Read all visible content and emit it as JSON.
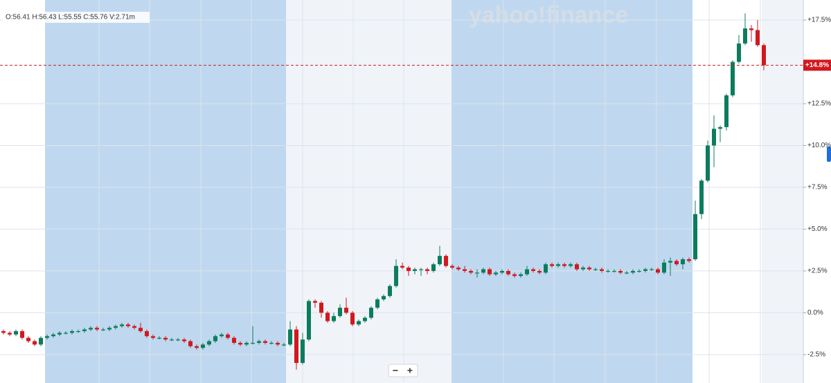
{
  "chart_data": {
    "type": "candlestick",
    "ohlc_summary": "O:56.41 H:56.43 L:55.55 C:55.76 V:2.71m",
    "watermark": "yahoo!finance",
    "current_value": 14.8,
    "current_label": "+14.8%",
    "up_color": "#0c7c5d",
    "down_color": "#d0191f",
    "ylim": [
      -4.2,
      18.7
    ],
    "yticks": [
      {
        "value": -2.5,
        "label": "-2.5%"
      },
      {
        "value": 0,
        "label": "0.0%"
      },
      {
        "value": 2.5,
        "label": "+2.5%"
      },
      {
        "value": 5,
        "label": "+5.0%"
      },
      {
        "value": 7.5,
        "label": "+7.5%"
      },
      {
        "value": 10,
        "label": "+10.0%"
      },
      {
        "value": 12.5,
        "label": "+12.5%"
      },
      {
        "value": 17.5,
        "label": "+17.5%"
      }
    ],
    "grid": true,
    "controls": [
      "−",
      "+"
    ],
    "series": {
      "open": [
        -1.1,
        -1.2,
        -1.3,
        -1.1,
        -1.5,
        -1.7,
        -1.9,
        -1.5,
        -1.4,
        -1.3,
        -1.2,
        -1.2,
        -1.1,
        -1.1,
        -1.0,
        -0.9,
        -1.0,
        -1.0,
        -0.9,
        -0.8,
        -0.7,
        -0.8,
        -0.9,
        -1.1,
        -1.4,
        -1.5,
        -1.5,
        -1.6,
        -1.6,
        -1.6,
        -1.7,
        -2.0,
        -2.1,
        -1.9,
        -1.7,
        -1.4,
        -1.3,
        -1.5,
        -1.8,
        -1.9,
        -1.8,
        -1.8,
        -1.7,
        -1.8,
        -1.8,
        -1.9,
        -1.9,
        -1.0,
        -3.0,
        -1.6,
        0.7,
        0.6,
        0.0,
        -0.5,
        -0.2,
        0.3,
        0.0,
        -0.7,
        -0.5,
        -0.3,
        0.3,
        0.8,
        1.0,
        1.6,
        2.8,
        2.7,
        2.5,
        2.6,
        2.6,
        2.5,
        2.9,
        3.4,
        2.8,
        2.7,
        2.6,
        2.5,
        2.4,
        2.4,
        2.6,
        2.3,
        2.4,
        2.5,
        2.3,
        2.2,
        2.3,
        2.6,
        2.5,
        2.4,
        2.9,
        2.8,
        2.9,
        2.8,
        2.9,
        2.6,
        2.7,
        2.6,
        2.6,
        2.5,
        2.5,
        2.5,
        2.4,
        2.4,
        2.5,
        2.5,
        2.6,
        2.6,
        2.4,
        3.0,
        3.1,
        2.9,
        3.2,
        3.2,
        5.9,
        7.9,
        10.0,
        11.0,
        11.1,
        13.0,
        15.0,
        16.1,
        17.0,
        16.9,
        16.0
      ],
      "high": [
        -1.0,
        -1.1,
        -1.0,
        -1.0,
        -1.4,
        -1.6,
        -1.4,
        -1.3,
        -1.2,
        -1.1,
        -1.1,
        -1.0,
        -1.0,
        -0.9,
        -0.8,
        -0.8,
        -0.9,
        -0.8,
        -0.7,
        -0.6,
        -0.6,
        -0.7,
        -0.6,
        -1.0,
        -1.3,
        -1.4,
        -1.4,
        -1.5,
        -1.5,
        -1.5,
        -1.6,
        -1.9,
        -1.8,
        -1.6,
        -1.3,
        -1.2,
        -1.2,
        -1.4,
        -1.7,
        -1.7,
        -0.8,
        -1.6,
        -1.6,
        -1.7,
        -1.7,
        -1.8,
        -0.5,
        -0.8,
        -1.2,
        0.8,
        0.8,
        0.7,
        0.1,
        0.0,
        0.5,
        0.9,
        0.1,
        -0.4,
        -0.2,
        0.4,
        0.9,
        1.1,
        1.7,
        3.2,
        3.0,
        2.8,
        2.7,
        2.7,
        2.7,
        3.0,
        4.0,
        3.5,
        2.9,
        2.8,
        2.8,
        2.6,
        2.6,
        2.7,
        2.7,
        2.5,
        2.6,
        2.6,
        2.4,
        2.4,
        2.8,
        2.7,
        2.6,
        3.0,
        3.0,
        3.0,
        3.0,
        3.0,
        3.0,
        2.8,
        2.8,
        2.7,
        2.7,
        2.6,
        2.6,
        2.6,
        2.5,
        2.6,
        2.6,
        2.7,
        2.7,
        2.7,
        3.2,
        3.3,
        3.2,
        3.3,
        3.3,
        6.7,
        8.0,
        10.3,
        11.8,
        11.2,
        13.1,
        15.1,
        16.6,
        17.9,
        17.2,
        17.5,
        16.1
      ],
      "low": [
        -1.3,
        -1.4,
        -1.4,
        -1.6,
        -1.8,
        -2.0,
        -2.0,
        -1.6,
        -1.5,
        -1.4,
        -1.3,
        -1.3,
        -1.2,
        -1.2,
        -1.1,
        -1.1,
        -1.1,
        -1.1,
        -1.0,
        -0.9,
        -0.9,
        -1.0,
        -1.2,
        -1.5,
        -1.6,
        -1.6,
        -1.7,
        -1.7,
        -1.7,
        -1.8,
        -2.1,
        -2.2,
        -2.2,
        -2.0,
        -1.8,
        -1.5,
        -1.6,
        -1.9,
        -2.0,
        -2.0,
        -1.9,
        -1.9,
        -1.9,
        -1.9,
        -2.0,
        -2.0,
        -2.0,
        -3.4,
        -3.1,
        -1.7,
        0.3,
        -0.3,
        -0.6,
        -0.6,
        -0.3,
        -0.1,
        -0.8,
        -0.8,
        -0.6,
        -0.4,
        0.2,
        0.7,
        0.9,
        1.5,
        2.6,
        2.2,
        2.3,
        2.2,
        2.3,
        2.4,
        2.8,
        2.7,
        2.6,
        2.5,
        2.4,
        2.3,
        2.1,
        2.3,
        2.2,
        2.2,
        2.3,
        2.2,
        2.1,
        2.1,
        2.2,
        2.4,
        2.3,
        2.3,
        2.7,
        2.7,
        2.7,
        2.7,
        2.5,
        2.5,
        2.5,
        2.5,
        2.4,
        2.4,
        2.4,
        2.3,
        2.3,
        2.3,
        2.4,
        2.4,
        2.5,
        2.3,
        2.3,
        2.2,
        2.8,
        2.6,
        3.0,
        3.1,
        5.6,
        7.8,
        8.7,
        10.2,
        10.9,
        12.9,
        14.9,
        16.0,
        16.2,
        15.9,
        14.5
      ],
      "close": [
        -1.2,
        -1.3,
        -1.1,
        -1.5,
        -1.7,
        -1.9,
        -1.5,
        -1.4,
        -1.3,
        -1.2,
        -1.2,
        -1.1,
        -1.1,
        -1.0,
        -0.9,
        -1.0,
        -1.0,
        -0.9,
        -0.8,
        -0.7,
        -0.8,
        -0.9,
        -1.1,
        -1.4,
        -1.5,
        -1.5,
        -1.6,
        -1.6,
        -1.6,
        -1.7,
        -2.0,
        -2.1,
        -1.9,
        -1.7,
        -1.4,
        -1.3,
        -1.5,
        -1.8,
        -1.9,
        -1.8,
        -1.8,
        -1.7,
        -1.8,
        -1.8,
        -1.9,
        -1.9,
        -1.0,
        -3.0,
        -1.6,
        0.7,
        0.6,
        0.0,
        -0.5,
        -0.2,
        0.3,
        0.0,
        -0.7,
        -0.5,
        -0.3,
        0.3,
        0.8,
        1.0,
        1.6,
        2.8,
        2.7,
        2.5,
        2.6,
        2.6,
        2.5,
        2.9,
        3.4,
        2.8,
        2.7,
        2.6,
        2.5,
        2.4,
        2.4,
        2.6,
        2.3,
        2.4,
        2.5,
        2.3,
        2.2,
        2.3,
        2.6,
        2.5,
        2.4,
        2.9,
        2.8,
        2.9,
        2.8,
        2.9,
        2.6,
        2.7,
        2.6,
        2.6,
        2.5,
        2.5,
        2.5,
        2.4,
        2.4,
        2.5,
        2.5,
        2.6,
        2.6,
        2.4,
        3.0,
        3.1,
        2.9,
        3.2,
        3.1,
        5.9,
        7.9,
        10.0,
        11.0,
        11.1,
        13.0,
        15.0,
        16.1,
        17.0,
        16.9,
        16.0,
        14.8
      ]
    }
  }
}
